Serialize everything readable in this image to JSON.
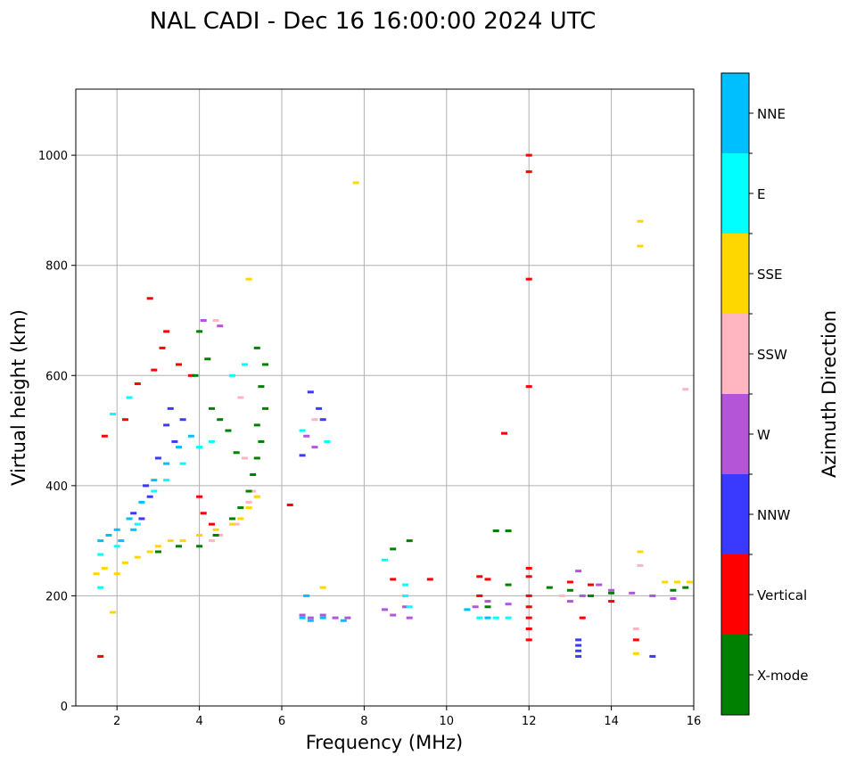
{
  "chart_data": {
    "type": "scatter",
    "title": "NAL CADI - Dec 16 16:00:00 2024 UTC",
    "xlabel": "Frequency (MHz)",
    "ylabel": "Virtual height (km)",
    "xlim": [
      1,
      16
    ],
    "ylim": [
      0,
      1120
    ],
    "xticks": [
      2,
      4,
      6,
      8,
      10,
      12,
      14,
      16
    ],
    "yticks": [
      0,
      200,
      400,
      600,
      800,
      1000
    ],
    "grid": true,
    "colorbar": {
      "label": "Azimuth Direction",
      "categories": [
        {
          "name": "X-mode",
          "color": "#008000"
        },
        {
          "name": "Vertical",
          "color": "#ff0000"
        },
        {
          "name": "NNW",
          "color": "#3a3aff"
        },
        {
          "name": "W",
          "color": "#b455d8"
        },
        {
          "name": "SSW",
          "color": "#ffb6c1"
        },
        {
          "name": "SSE",
          "color": "#ffd700"
        },
        {
          "name": "E",
          "color": "#00ffff"
        },
        {
          "name": "NNE",
          "color": "#00bfff"
        }
      ]
    },
    "series": [
      {
        "name": "Vertical",
        "points": [
          [
            1.6,
            90
          ],
          [
            1.7,
            490
          ],
          [
            2.2,
            520
          ],
          [
            2.5,
            585
          ],
          [
            2.8,
            740
          ],
          [
            2.9,
            610
          ],
          [
            3.1,
            650
          ],
          [
            3.2,
            680
          ],
          [
            3.5,
            620
          ],
          [
            3.8,
            600
          ],
          [
            4.0,
            380
          ],
          [
            4.1,
            350
          ],
          [
            4.3,
            330
          ],
          [
            6.2,
            365
          ],
          [
            8.7,
            230
          ],
          [
            9.6,
            230
          ],
          [
            10.8,
            235
          ],
          [
            11.0,
            230
          ],
          [
            11.4,
            495
          ],
          [
            12.0,
            1000
          ],
          [
            12.0,
            970
          ],
          [
            12.0,
            775
          ],
          [
            12.0,
            580
          ],
          [
            12.0,
            250
          ],
          [
            12.0,
            235
          ],
          [
            12.0,
            200
          ],
          [
            12.0,
            180
          ],
          [
            12.0,
            160
          ],
          [
            12.0,
            140
          ],
          [
            12.0,
            120
          ],
          [
            13.0,
            225
          ],
          [
            13.5,
            220
          ],
          [
            13.3,
            160
          ],
          [
            14.0,
            190
          ],
          [
            14.6,
            120
          ],
          [
            10.8,
            200
          ]
        ]
      },
      {
        "name": "NNW",
        "points": [
          [
            2.6,
            340
          ],
          [
            2.8,
            380
          ],
          [
            3.0,
            450
          ],
          [
            3.2,
            510
          ],
          [
            3.4,
            480
          ],
          [
            3.6,
            520
          ],
          [
            6.7,
            570
          ],
          [
            6.9,
            540
          ],
          [
            7.0,
            520
          ],
          [
            6.5,
            455
          ],
          [
            13.2,
            120
          ],
          [
            13.2,
            110
          ],
          [
            13.2,
            100
          ],
          [
            13.2,
            90
          ],
          [
            15.0,
            90
          ],
          [
            2.4,
            350
          ],
          [
            2.7,
            400
          ],
          [
            3.3,
            540
          ]
        ]
      },
      {
        "name": "W",
        "points": [
          [
            6.5,
            165
          ],
          [
            6.7,
            160
          ],
          [
            7.0,
            165
          ],
          [
            7.3,
            160
          ],
          [
            7.6,
            160
          ],
          [
            8.5,
            175
          ],
          [
            8.7,
            165
          ],
          [
            9.0,
            180
          ],
          [
            9.1,
            160
          ],
          [
            10.7,
            180
          ],
          [
            11.0,
            190
          ],
          [
            11.5,
            185
          ],
          [
            13.0,
            190
          ],
          [
            13.3,
            200
          ],
          [
            13.7,
            220
          ],
          [
            14.0,
            210
          ],
          [
            14.5,
            205
          ],
          [
            15.0,
            200
          ],
          [
            15.5,
            195
          ],
          [
            6.6,
            490
          ],
          [
            6.8,
            470
          ],
          [
            13.2,
            245
          ],
          [
            4.1,
            700
          ],
          [
            4.5,
            690
          ]
        ]
      },
      {
        "name": "SSW",
        "points": [
          [
            5.3,
            390
          ],
          [
            5.4,
            380
          ],
          [
            5.2,
            370
          ],
          [
            4.9,
            330
          ],
          [
            4.5,
            310
          ],
          [
            4.3,
            300
          ],
          [
            14.7,
            255
          ],
          [
            14.6,
            140
          ],
          [
            15.8,
            575
          ],
          [
            6.5,
            500
          ],
          [
            6.8,
            520
          ],
          [
            12.8,
            200
          ],
          [
            4.4,
            700
          ],
          [
            5.0,
            560
          ],
          [
            5.1,
            450
          ]
        ]
      },
      {
        "name": "SSE",
        "points": [
          [
            1.5,
            240
          ],
          [
            1.7,
            250
          ],
          [
            2.0,
            240
          ],
          [
            2.2,
            260
          ],
          [
            2.5,
            270
          ],
          [
            2.8,
            280
          ],
          [
            3.0,
            290
          ],
          [
            3.3,
            300
          ],
          [
            3.6,
            300
          ],
          [
            4.0,
            310
          ],
          [
            4.4,
            320
          ],
          [
            4.8,
            330
          ],
          [
            5.0,
            340
          ],
          [
            5.2,
            360
          ],
          [
            5.4,
            380
          ],
          [
            14.7,
            880
          ],
          [
            14.7,
            835
          ],
          [
            7.8,
            950
          ],
          [
            7.0,
            215
          ],
          [
            14.7,
            280
          ],
          [
            15.3,
            225
          ],
          [
            15.6,
            225
          ],
          [
            15.9,
            225
          ],
          [
            14.6,
            95
          ],
          [
            1.9,
            170
          ],
          [
            5.2,
            775
          ]
        ]
      },
      {
        "name": "E",
        "points": [
          [
            1.6,
            275
          ],
          [
            2.0,
            290
          ],
          [
            2.5,
            330
          ],
          [
            2.9,
            390
          ],
          [
            3.2,
            410
          ],
          [
            3.6,
            440
          ],
          [
            4.0,
            470
          ],
          [
            4.3,
            480
          ],
          [
            4.8,
            600
          ],
          [
            5.1,
            620
          ],
          [
            9.0,
            220
          ],
          [
            9.0,
            200
          ],
          [
            9.1,
            180
          ],
          [
            10.8,
            160
          ],
          [
            11.2,
            160
          ],
          [
            11.5,
            160
          ],
          [
            8.5,
            265
          ],
          [
            6.5,
            500
          ],
          [
            7.1,
            480
          ],
          [
            1.9,
            530
          ],
          [
            2.3,
            560
          ],
          [
            1.6,
            215
          ]
        ]
      },
      {
        "name": "NNE",
        "points": [
          [
            1.6,
            300
          ],
          [
            1.8,
            310
          ],
          [
            2.0,
            320
          ],
          [
            2.3,
            340
          ],
          [
            2.6,
            370
          ],
          [
            2.9,
            410
          ],
          [
            3.2,
            440
          ],
          [
            3.5,
            470
          ],
          [
            3.8,
            490
          ],
          [
            6.5,
            160
          ],
          [
            6.7,
            155
          ],
          [
            7.0,
            160
          ],
          [
            7.5,
            155
          ],
          [
            10.5,
            175
          ],
          [
            11.0,
            160
          ],
          [
            6.6,
            200
          ],
          [
            2.1,
            300
          ],
          [
            2.4,
            320
          ]
        ]
      },
      {
        "name": "X-mode",
        "points": [
          [
            3.0,
            280
          ],
          [
            3.5,
            290
          ],
          [
            4.0,
            290
          ],
          [
            4.4,
            310
          ],
          [
            4.8,
            340
          ],
          [
            5.0,
            360
          ],
          [
            5.2,
            390
          ],
          [
            5.3,
            420
          ],
          [
            5.4,
            450
          ],
          [
            5.5,
            480
          ],
          [
            5.4,
            510
          ],
          [
            5.6,
            540
          ],
          [
            5.5,
            580
          ],
          [
            5.6,
            620
          ],
          [
            5.4,
            650
          ],
          [
            4.0,
            680
          ],
          [
            4.2,
            630
          ],
          [
            3.9,
            600
          ],
          [
            4.3,
            540
          ],
          [
            4.5,
            520
          ],
          [
            4.7,
            500
          ],
          [
            4.9,
            460
          ],
          [
            9.1,
            300
          ],
          [
            8.7,
            285
          ],
          [
            11.2,
            318
          ],
          [
            11.5,
            318
          ],
          [
            11.5,
            220
          ],
          [
            12.5,
            215
          ],
          [
            13.0,
            210
          ],
          [
            13.5,
            200
          ],
          [
            14.0,
            205
          ],
          [
            15.5,
            210
          ],
          [
            15.8,
            215
          ],
          [
            11.0,
            180
          ]
        ]
      }
    ]
  }
}
